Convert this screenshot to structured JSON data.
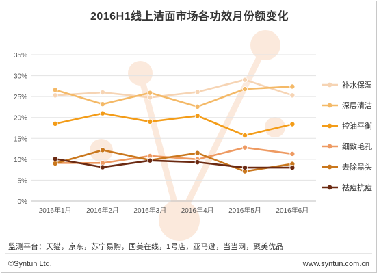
{
  "chart_data": {
    "type": "line",
    "title": "2016H1线上洁面市场各功效月份额变化",
    "categories": [
      "2016年1月",
      "2016年2月",
      "2016年3月",
      "2016年4月",
      "2016年5月",
      "2016年6月"
    ],
    "y_ticks": [
      "0%",
      "5%",
      "10%",
      "15%",
      "20%",
      "25%",
      "30%",
      "35%"
    ],
    "ylim": [
      0,
      35
    ],
    "grid": true,
    "legend_position": "right",
    "series": [
      {
        "name": "补水保湿",
        "color": "#f6d4b4",
        "values": [
          25.3,
          26.0,
          24.8,
          26.1,
          29.0,
          25.3
        ]
      },
      {
        "name": "深层清洁",
        "color": "#f4b967",
        "values": [
          26.6,
          23.2,
          25.9,
          22.6,
          26.8,
          27.4
        ]
      },
      {
        "name": "控油平衡",
        "color": "#f39c18",
        "values": [
          18.5,
          21.0,
          19.0,
          20.4,
          15.7,
          18.4
        ]
      },
      {
        "name": "细致毛孔",
        "color": "#ee9a62",
        "values": [
          9.1,
          9.1,
          10.8,
          10.0,
          12.8,
          11.3
        ]
      },
      {
        "name": "去除黑头",
        "color": "#c9771d",
        "values": [
          9.0,
          12.2,
          9.8,
          11.5,
          7.1,
          8.9
        ]
      },
      {
        "name": "祛痘抗痘",
        "color": "#6b2a12",
        "values": [
          10.1,
          8.1,
          9.7,
          9.3,
          8.0,
          8.0
        ]
      }
    ]
  },
  "footer": {
    "platform": "监测平台：天猫，京东，苏宁易购，国美在线，1号店，亚马逊，当当网，聚美优品",
    "copyright": "©Syntun Ltd.",
    "site": "www.syntun.com.cn"
  }
}
